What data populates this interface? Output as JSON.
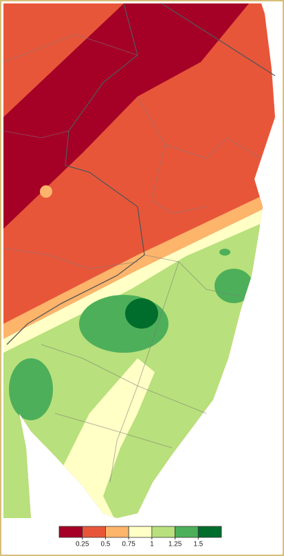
{
  "legend": {
    "colors": [
      "#a50026",
      "#e8563a",
      "#fdb46b",
      "#ffffc6",
      "#b8e07c",
      "#4daf5a",
      "#006d2c"
    ],
    "ticks": [
      0.25,
      0.5,
      0.75,
      1,
      1.25,
      1.5
    ]
  }
}
